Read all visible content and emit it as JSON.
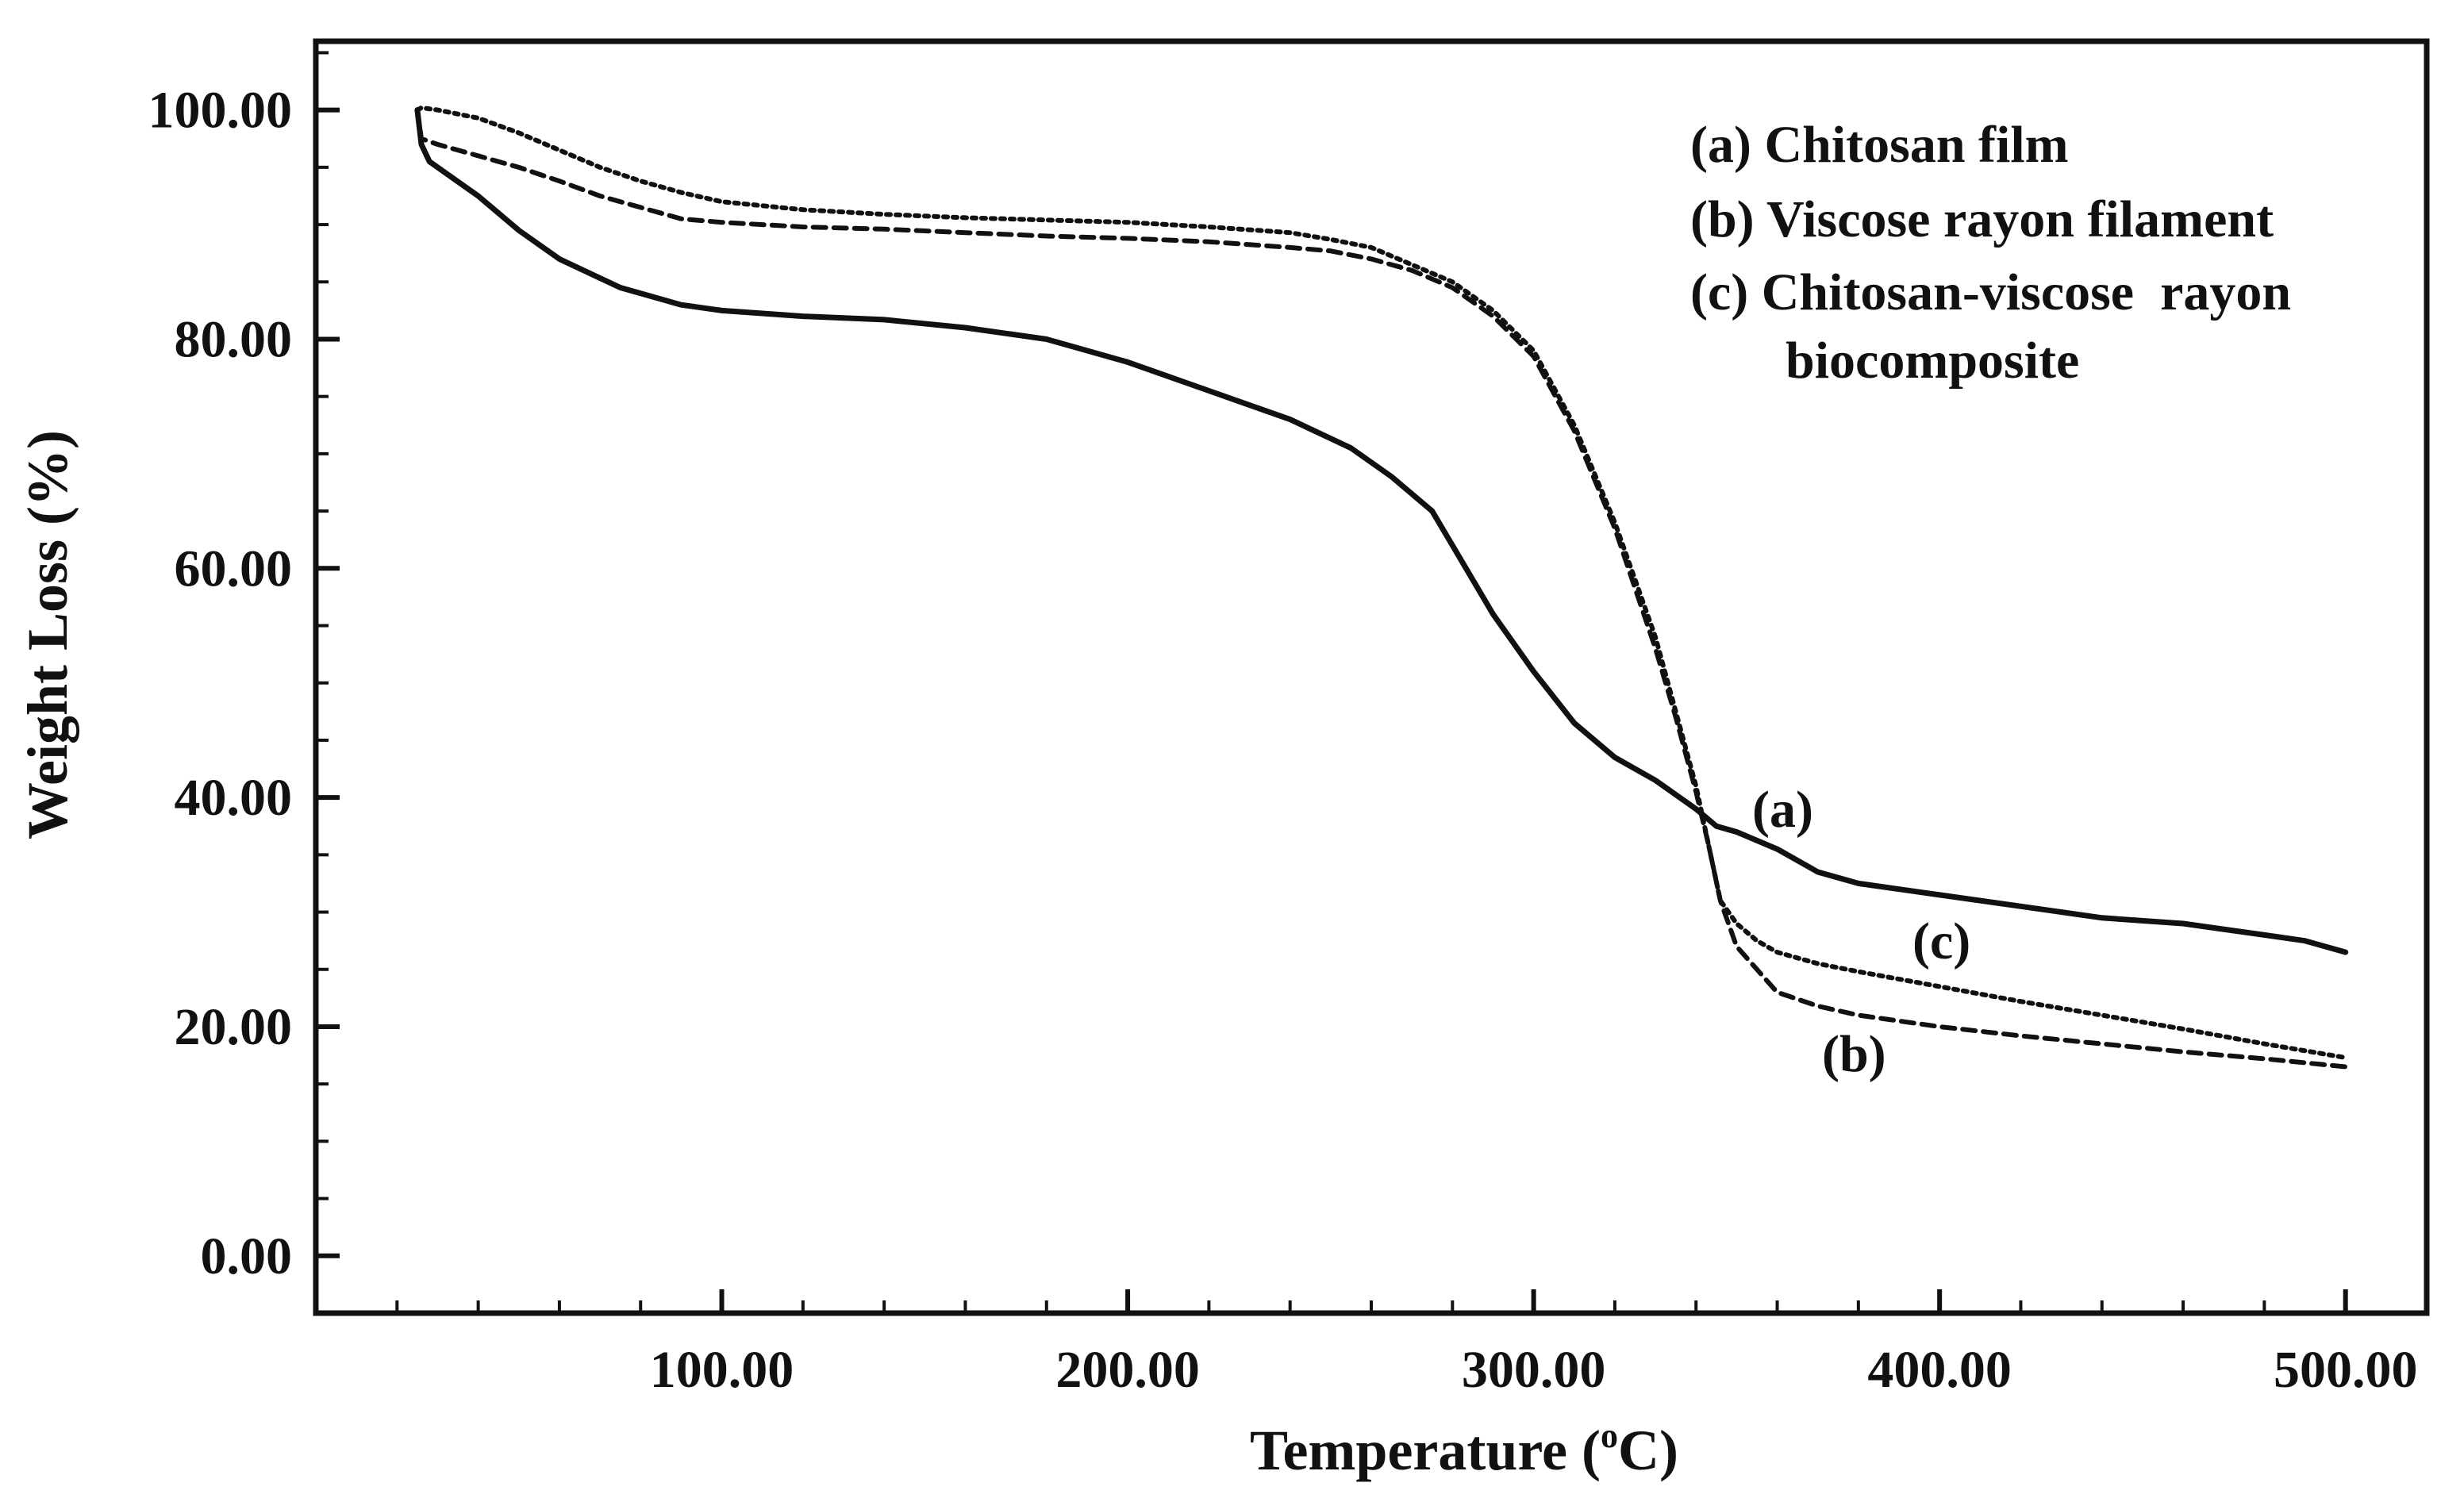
{
  "chart_data": {
    "type": "line",
    "title": "",
    "xlabel": "Temperature",
    "xlabel_unit_base": "C",
    "xlabel_unit_sup": "o",
    "xlabel_open": "(",
    "xlabel_close": ")",
    "ylabel": "Weight Loss (%)",
    "xlim": [
      0,
      520
    ],
    "ylim": [
      -5,
      106
    ],
    "grid": false,
    "x_ticks": [
      {
        "value": 100,
        "label": "100.00"
      },
      {
        "value": 200,
        "label": "200.00"
      },
      {
        "value": 300,
        "label": "300.00"
      },
      {
        "value": 400,
        "label": "400.00"
      },
      {
        "value": 500,
        "label": "500.00"
      }
    ],
    "y_ticks": [
      {
        "value": 0,
        "label": "0.00"
      },
      {
        "value": 20,
        "label": "20.00"
      },
      {
        "value": 40,
        "label": "40.00"
      },
      {
        "value": 60,
        "label": "60.00"
      },
      {
        "value": 80,
        "label": "80.00"
      },
      {
        "value": 100,
        "label": "100.00"
      }
    ],
    "x_minor_step": 20,
    "y_minor_step": 5,
    "legend": {
      "position": "top-right",
      "lines": [
        "(a) Chitosan film",
        "(b) Viscose rayon filament",
        "(c) Chitosan-viscose  rayon",
        "biocomposite"
      ]
    },
    "series": [
      {
        "name": "(a) Chitosan film",
        "label": "(a)",
        "style": "solid",
        "x": [
          25,
          26,
          28,
          32,
          40,
          50,
          60,
          75,
          90,
          100,
          120,
          140,
          160,
          180,
          200,
          220,
          240,
          255,
          265,
          275,
          280,
          290,
          300,
          310,
          320,
          330,
          340,
          345,
          350,
          360,
          370,
          380,
          400,
          420,
          440,
          460,
          480,
          490,
          500
        ],
        "y": [
          100,
          97,
          95.5,
          94.5,
          92.5,
          89.5,
          87,
          84.5,
          83,
          82.5,
          82,
          81.7,
          81,
          80,
          78,
          75.5,
          73,
          70.5,
          68,
          65,
          62,
          56,
          51,
          46.5,
          43.5,
          41.5,
          39,
          37.5,
          37,
          35.5,
          33.5,
          32.5,
          31.5,
          30.5,
          29.5,
          29,
          28,
          27.5,
          26.5
        ]
      },
      {
        "name": "(b) Viscose rayon filament",
        "label": "(b)",
        "style": "dashed",
        "x": [
          25,
          26,
          30,
          40,
          50,
          60,
          70,
          80,
          90,
          100,
          120,
          140,
          160,
          180,
          200,
          220,
          240,
          250,
          260,
          270,
          280,
          290,
          300,
          310,
          320,
          330,
          335,
          340,
          343,
          346,
          350,
          355,
          360,
          370,
          380,
          400,
          420,
          440,
          460,
          480,
          500
        ],
        "y": [
          100,
          97.5,
          97,
          96,
          95,
          93.8,
          92.5,
          91.5,
          90.5,
          90.2,
          89.8,
          89.6,
          89.3,
          89,
          88.8,
          88.5,
          88,
          87.7,
          87,
          86,
          84.5,
          82,
          78.5,
          72,
          63.5,
          53,
          47,
          40.5,
          36,
          31,
          27,
          25,
          23,
          21.8,
          21,
          20,
          19.2,
          18.5,
          17.8,
          17.2,
          16.5
        ]
      },
      {
        "name": "(c) Chitosan-viscose  rayon biocomposite",
        "label": "(c)",
        "style": "dotted",
        "x": [
          25,
          26,
          30,
          40,
          50,
          60,
          70,
          80,
          90,
          100,
          120,
          140,
          160,
          180,
          200,
          220,
          240,
          250,
          260,
          270,
          280,
          290,
          300,
          310,
          320,
          330,
          335,
          340,
          343,
          346,
          350,
          355,
          360,
          370,
          380,
          400,
          420,
          440,
          460,
          480,
          500
        ],
        "y": [
          100,
          100.2,
          100,
          99.3,
          98,
          96.5,
          95,
          93.8,
          92.8,
          92,
          91.3,
          90.9,
          90.6,
          90.4,
          90.2,
          89.8,
          89.3,
          88.7,
          88,
          86.5,
          85,
          82.5,
          79,
          72.5,
          64,
          54,
          47.5,
          41,
          36,
          31,
          29,
          27.5,
          26.5,
          25.5,
          24.8,
          23.5,
          22.2,
          21,
          19.8,
          18.5,
          17.3
        ]
      }
    ]
  }
}
